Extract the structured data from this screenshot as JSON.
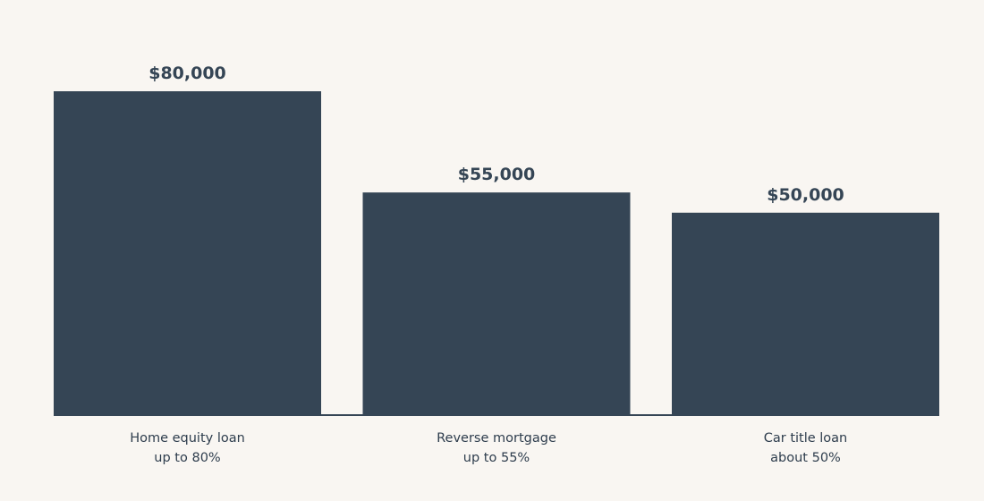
{
  "chart_data": {
    "type": "bar",
    "categories": [
      {
        "name": "Home equity loan",
        "note": "up to 80%"
      },
      {
        "name": "Reverse mortgage",
        "note": "up to 55%"
      },
      {
        "name": "Car title loan",
        "note": "about 50%"
      }
    ],
    "values": [
      80000,
      55000,
      50000
    ],
    "value_labels": [
      "$80,000",
      "$55,000",
      "$50,000"
    ],
    "title": "",
    "xlabel": "",
    "ylabel": "",
    "ylim": [
      0,
      80000
    ],
    "grid": false,
    "legend": "none",
    "bar_color": "#354555",
    "background_color": "#f9f6f2"
  }
}
